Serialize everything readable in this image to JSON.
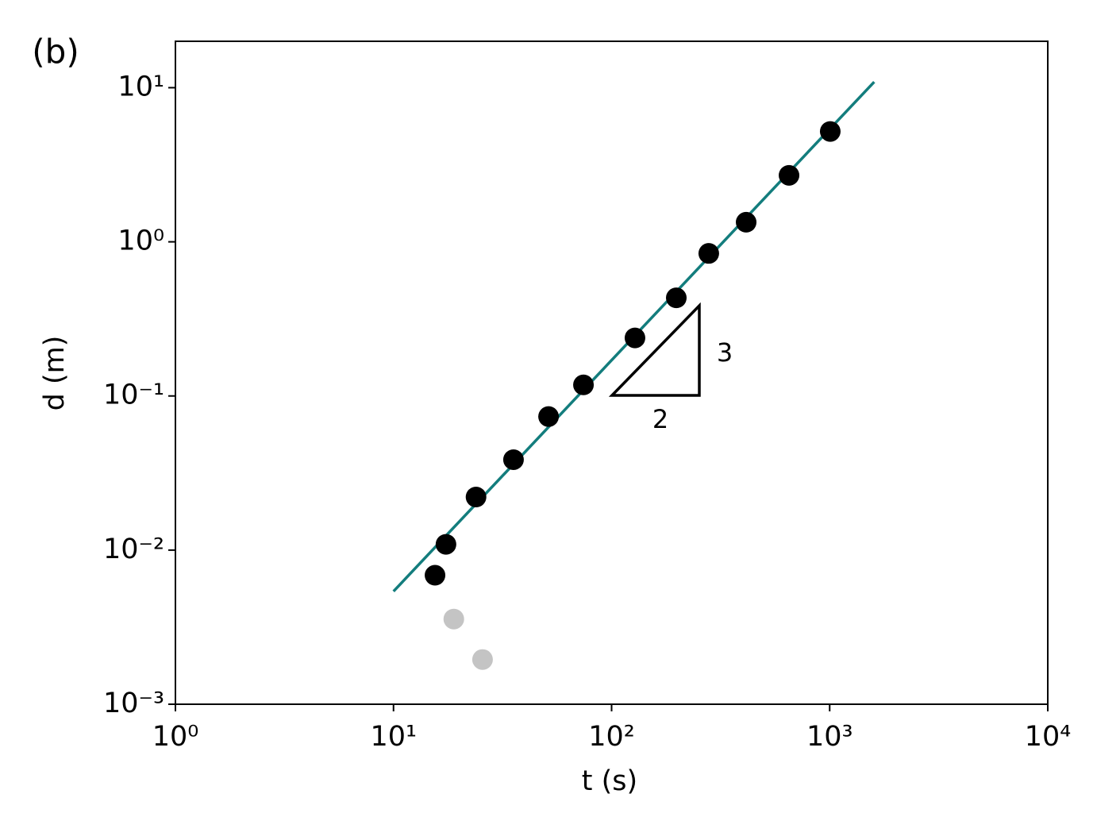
{
  "chart_data": {
    "type": "scatter",
    "panel_label": "(b)",
    "xlabel": "t (s)",
    "ylabel": "d (m)",
    "log_x": true,
    "log_y": true,
    "xlim": [
      1,
      10000
    ],
    "ylim": [
      0.001,
      20
    ],
    "xticks": [
      {
        "value": 1,
        "label": "10⁰"
      },
      {
        "value": 10,
        "label": "10¹"
      },
      {
        "value": 100,
        "label": "10²"
      },
      {
        "value": 1000,
        "label": "10³"
      },
      {
        "value": 10000,
        "label": "10⁴"
      }
    ],
    "yticks": [
      {
        "value": 0.001,
        "label": "10⁻³"
      },
      {
        "value": 0.01,
        "label": "10⁻²"
      },
      {
        "value": 0.1,
        "label": "10⁻¹"
      },
      {
        "value": 1,
        "label": "10⁰"
      },
      {
        "value": 10,
        "label": "10¹"
      }
    ],
    "series": [
      {
        "color": "#000000",
        "x": [
          15.5,
          17.4,
          23.9,
          35.5,
          51.4,
          74.3,
          128,
          198,
          279,
          414,
          651,
          1006
        ],
        "values": [
          0.00687,
          0.0109,
          0.0221,
          0.0386,
          0.0735,
          0.118,
          0.238,
          0.433,
          0.841,
          1.34,
          2.7,
          5.2
        ]
      },
      {
        "color": "#c4c4c4",
        "x": [
          18.9,
          25.6
        ],
        "values": [
          0.00357,
          0.00195
        ]
      }
    ],
    "fit_line": {
      "color": "#137d7d",
      "x": [
        10,
        1600
      ],
      "values": [
        0.0054,
        10.9
      ]
    },
    "annotations": [
      {
        "text": "3"
      },
      {
        "text": "2"
      }
    ]
  }
}
